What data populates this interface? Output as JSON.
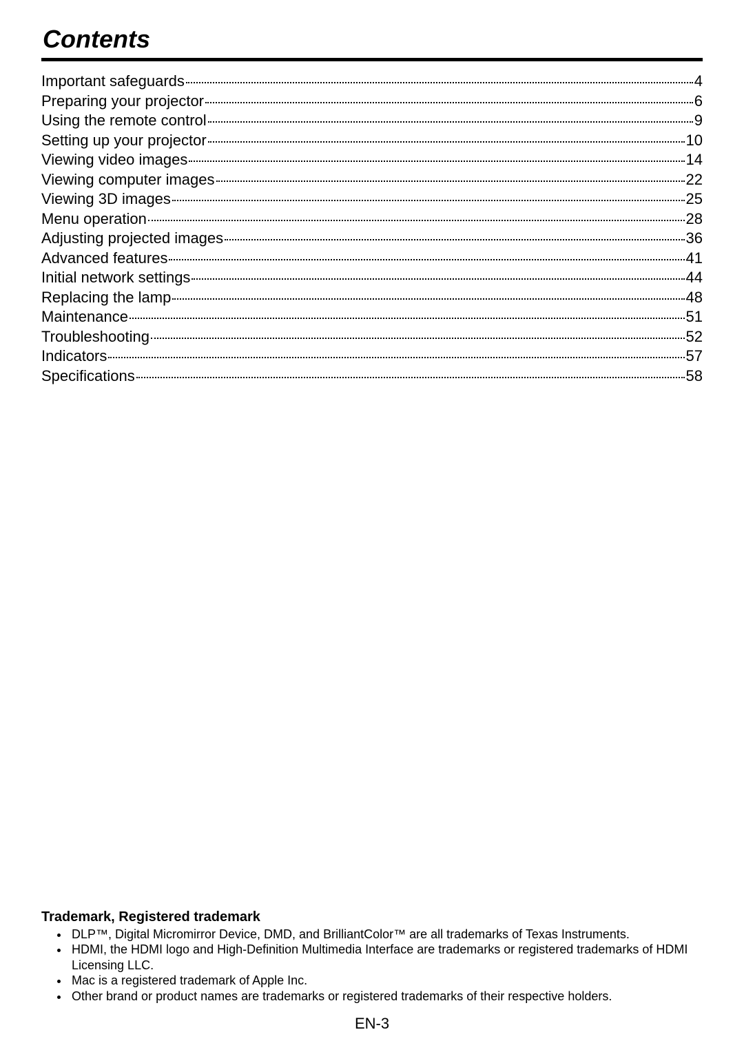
{
  "title": "Contents",
  "toc": [
    {
      "label": "Important safeguards",
      "page": "4"
    },
    {
      "label": "Preparing your projector",
      "page": "6"
    },
    {
      "label": "Using the remote control",
      "page": "9"
    },
    {
      "label": "Setting up your projector",
      "page": "10"
    },
    {
      "label": "Viewing video images",
      "page": "14"
    },
    {
      "label": "Viewing computer images",
      "page": "22"
    },
    {
      "label": "Viewing 3D images",
      "page": "25"
    },
    {
      "label": "Menu operation",
      "page": "28"
    },
    {
      "label": "Adjusting projected images",
      "page": "36"
    },
    {
      "label": "Advanced features",
      "page": "41"
    },
    {
      "label": "Initial network settings",
      "page": "44"
    },
    {
      "label": "Replacing the lamp",
      "page": "48"
    },
    {
      "label": "Maintenance",
      "page": "51"
    },
    {
      "label": "Troubleshooting",
      "page": "52"
    },
    {
      "label": "Indicators",
      "page": "57"
    },
    {
      "label": "Specifications",
      "page": "58"
    }
  ],
  "trademark": {
    "heading": "Trademark, Registered trademark",
    "items": [
      "DLP™, Digital Micromirror Device, DMD, and BrilliantColor™ are all trademarks of Texas Instruments.",
      "HDMI, the HDMI logo and High-Definition Multimedia Interface are trademarks or registered trademarks of HDMI Licensing LLC.",
      "Mac is a registered trademark of Apple Inc.",
      "Other brand or product names are trademarks or registered trademarks of their respective holders."
    ]
  },
  "page_number": "EN-3"
}
